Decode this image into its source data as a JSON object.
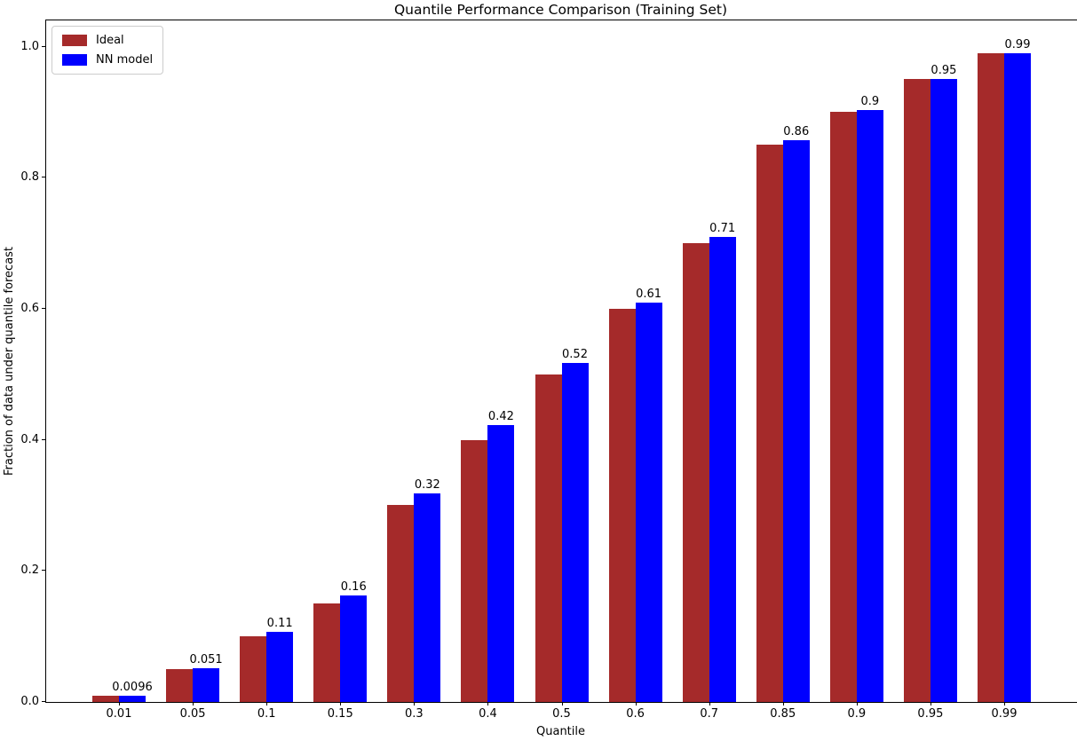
{
  "chart_data": {
    "type": "bar",
    "title": "Quantile Performance Comparison (Training Set)",
    "xlabel": "Quantile",
    "ylabel": "Fraction of data under quantile forecast",
    "categories": [
      "0.01",
      "0.05",
      "0.1",
      "0.15",
      "0.3",
      "0.4",
      "0.5",
      "0.6",
      "0.7",
      "0.85",
      "0.9",
      "0.95",
      "0.99"
    ],
    "series": [
      {
        "name": "Ideal",
        "color": "#A52A2A",
        "values": [
          0.01,
          0.05,
          0.1,
          0.15,
          0.3,
          0.4,
          0.5,
          0.6,
          0.7,
          0.85,
          0.9,
          0.95,
          0.99
        ]
      },
      {
        "name": "NN model",
        "color": "#0000FF",
        "values": [
          0.0096,
          0.051,
          0.107,
          0.163,
          0.318,
          0.422,
          0.517,
          0.61,
          0.71,
          0.857,
          0.903,
          0.95,
          0.99
        ]
      }
    ],
    "bar_labels": [
      "0.0096",
      "0.051",
      "0.11",
      "0.16",
      "0.32",
      "0.42",
      "0.52",
      "0.61",
      "0.71",
      "0.86",
      "0.9",
      "0.95",
      "0.99"
    ],
    "yticks": [
      "0.0",
      "0.2",
      "0.4",
      "0.6",
      "0.8",
      "1.0"
    ],
    "ylim": [
      0,
      1.04
    ],
    "legend_position": "upper-left",
    "grid": false
  }
}
